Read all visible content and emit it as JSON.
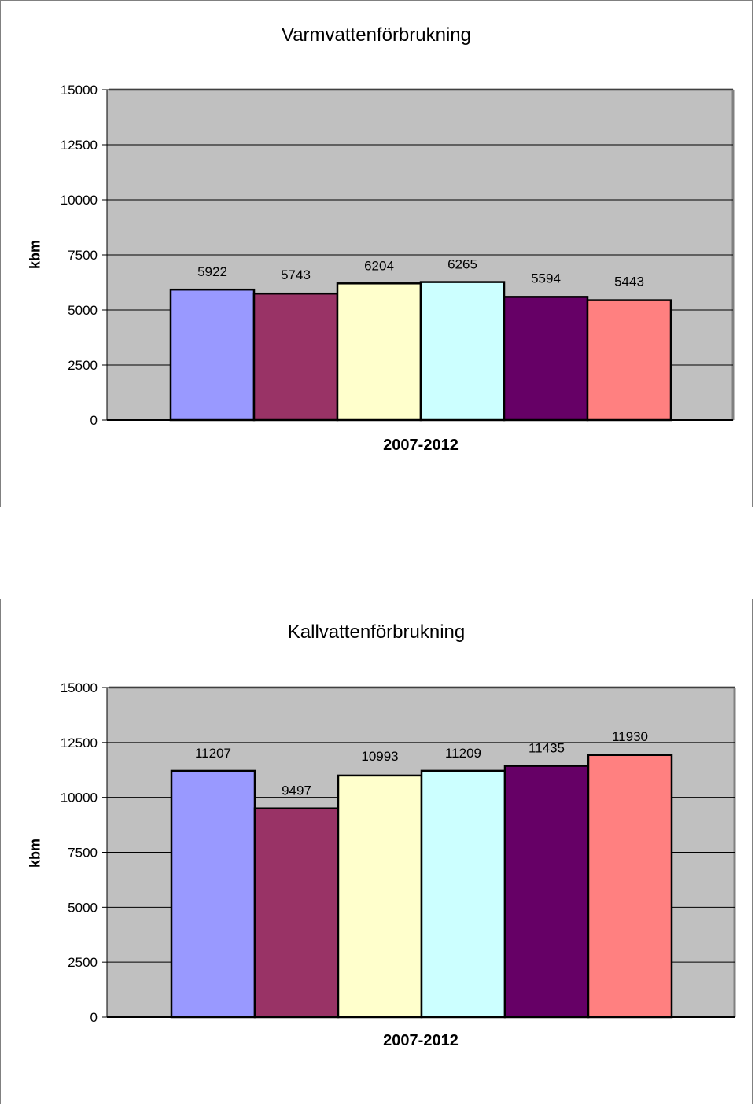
{
  "chart_data": [
    {
      "type": "bar",
      "title": "Varmvattenförbrukning",
      "xlabel": "2007-2012",
      "ylabel": "kbm",
      "ylim": [
        0,
        15000
      ],
      "yticks": [
        "0",
        "2500",
        "5000",
        "7500",
        "10000",
        "12500",
        "15000"
      ],
      "grid": true,
      "legend": "none",
      "plot_background": "#C0C0C0",
      "values": [
        5922,
        5743,
        6204,
        6265,
        5594,
        5443
      ],
      "labels": [
        "5922",
        "5743",
        "6204",
        "6265",
        "5594",
        "5443"
      ],
      "colors": [
        "#9999FF",
        "#993366",
        "#FFFFCC",
        "#CCFFFF",
        "#660066",
        "#FF8080"
      ]
    },
    {
      "type": "bar",
      "title": "Kallvattenförbrukning",
      "xlabel": "2007-2012",
      "ylabel": "kbm",
      "ylim": [
        0,
        15000
      ],
      "yticks": [
        "0",
        "2500",
        "5000",
        "7500",
        "10000",
        "12500",
        "15000"
      ],
      "grid": true,
      "legend": "none",
      "plot_background": "#C0C0C0",
      "values": [
        11207,
        9497,
        10993,
        11209,
        11435,
        11930
      ],
      "labels": [
        "11207",
        "9497",
        "10993",
        "11209",
        "11435",
        "11930"
      ],
      "colors": [
        "#9999FF",
        "#993366",
        "#FFFFCC",
        "#CCFFFF",
        "#660066",
        "#FF8080"
      ]
    }
  ]
}
